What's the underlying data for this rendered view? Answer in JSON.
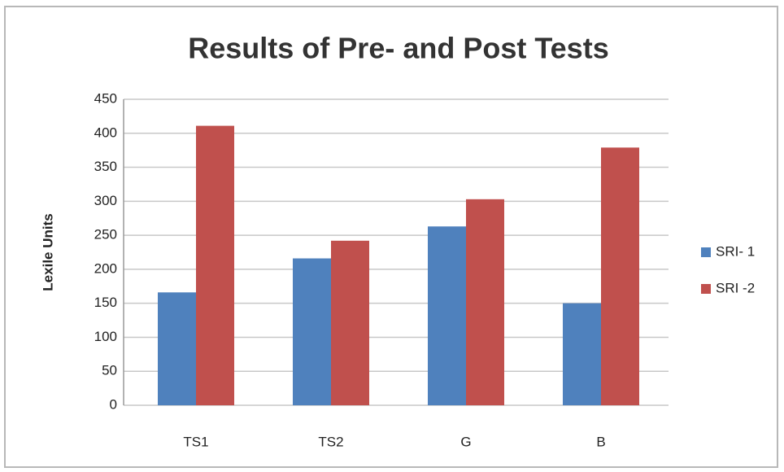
{
  "chart_data": {
    "type": "bar",
    "title": "Results of Pre- and Post Tests",
    "y_label": "Lexile Units",
    "categories": [
      "TS1",
      "TS2",
      "G",
      "B"
    ],
    "series": [
      {
        "name": "SRI- 1",
        "color": "#4f81bd",
        "values": [
          166,
          216,
          263,
          150
        ]
      },
      {
        "name": "SRI -2",
        "color": "#c0504d",
        "values": [
          411,
          242,
          303,
          379
        ]
      }
    ],
    "ylim": [
      0,
      450
    ],
    "yticks": [
      0,
      50,
      100,
      150,
      200,
      250,
      300,
      350,
      400,
      450
    ],
    "grid": true,
    "legend": "right"
  }
}
